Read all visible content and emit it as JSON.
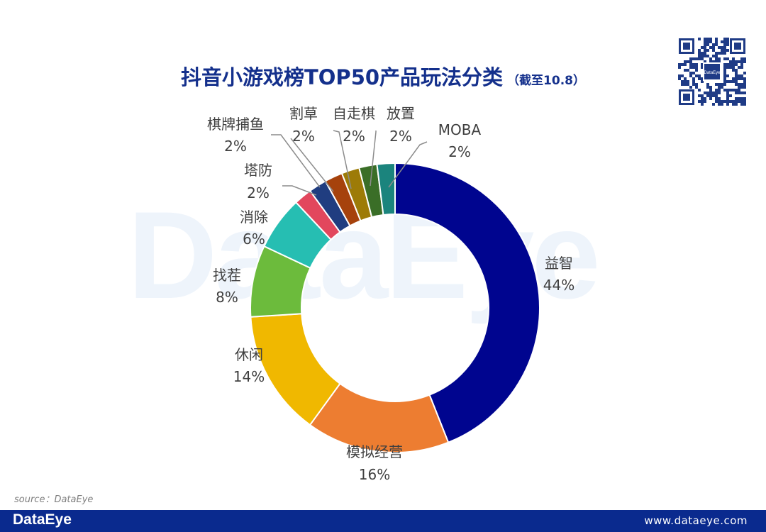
{
  "title": {
    "main": "抖音小游戏榜TOP50产品玩法分类",
    "sub": "（截至10.8）"
  },
  "watermark": "DataEye",
  "source": "source：DataEye",
  "footer": {
    "brand": "DataEye",
    "url": "www.dataeye.com"
  },
  "qr_logo": "DataEye",
  "chart_data": {
    "type": "pie",
    "style": "donut",
    "title": "抖音小游戏榜TOP50产品玩法分类（截至10.8）",
    "categories": [
      "益智",
      "模拟经营",
      "休闲",
      "找茬",
      "消除",
      "塔防",
      "棋牌捕鱼",
      "割草",
      "自走棋",
      "放置",
      "MOBA"
    ],
    "values": [
      44,
      16,
      14,
      8,
      6,
      2,
      2,
      2,
      2,
      2,
      2
    ],
    "labels": [
      "44%",
      "16%",
      "14%",
      "8%",
      "6%",
      "2%",
      "2%",
      "2%",
      "2%",
      "2%",
      "2%"
    ],
    "colors": [
      "#00058f",
      "#ed7d31",
      "#f0b800",
      "#6cbb3c",
      "#26beb2",
      "#e2475d",
      "#203d80",
      "#a6420c",
      "#9d7b07",
      "#3a6e27",
      "#1b847d"
    ]
  }
}
